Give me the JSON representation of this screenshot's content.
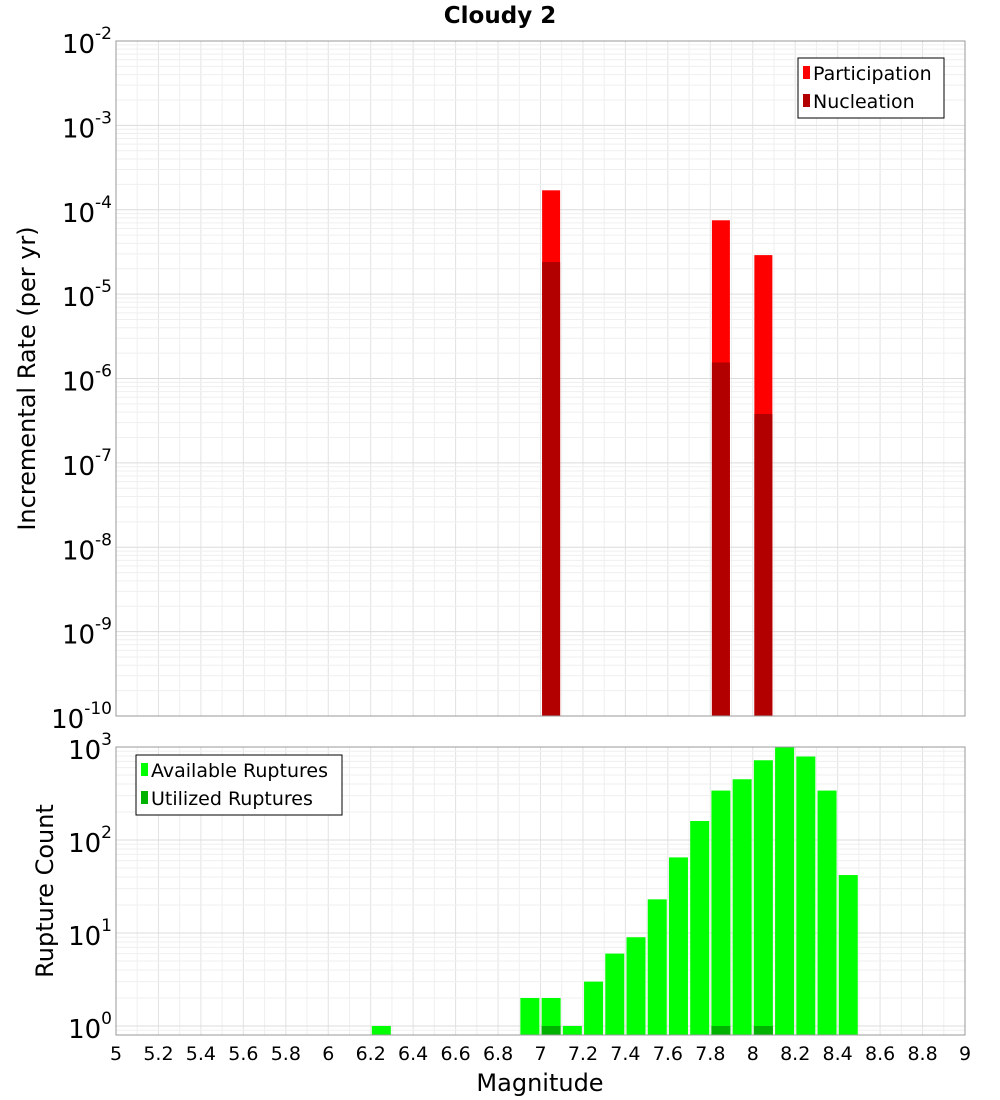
{
  "chart_data": {
    "title": "Cloudy 2",
    "xlabel": "Magnitude",
    "xlim": [
      5,
      9
    ],
    "x_ticks": [
      "5",
      "5.2",
      "5.4",
      "5.6",
      "5.8",
      "6",
      "6.2",
      "6.4",
      "6.6",
      "6.8",
      "7",
      "7.2",
      "7.4",
      "7.6",
      "7.8",
      "8",
      "8.2",
      "8.4",
      "8.6",
      "8.8",
      "9"
    ],
    "panels": [
      {
        "type": "bar",
        "ylabel": "Incremental Rate (per yr)",
        "yscale": "log",
        "ylim": [
          1e-10,
          0.01
        ],
        "grid": true,
        "legend_position": "top-right",
        "y_ticks": [
          {
            "base": "10",
            "exp": "-2"
          },
          {
            "base": "10",
            "exp": "-3"
          },
          {
            "base": "10",
            "exp": "-4"
          },
          {
            "base": "10",
            "exp": "-5"
          },
          {
            "base": "10",
            "exp": "-6"
          },
          {
            "base": "10",
            "exp": "-7"
          },
          {
            "base": "10",
            "exp": "-8"
          },
          {
            "base": "10",
            "exp": "-9"
          },
          {
            "base": "10",
            "exp": "-10"
          }
        ],
        "series": [
          {
            "name": "Participation",
            "color": "#ff0000",
            "x": [
              7.05,
              7.85,
              8.05
            ],
            "values": [
              0.00017,
              7.5e-05,
              2.9e-05
            ]
          },
          {
            "name": "Nucleation",
            "color": "#b20000",
            "x": [
              7.05,
              7.85,
              8.05
            ],
            "values": [
              2.4e-05,
              1.55e-06,
              3.8e-07
            ]
          }
        ]
      },
      {
        "type": "bar",
        "ylabel": "Rupture Count",
        "yscale": "log",
        "ylim": [
          0.8,
          1000
        ],
        "grid": true,
        "legend_position": "top-left",
        "y_ticks": [
          {
            "base": "10",
            "exp": "3"
          },
          {
            "base": "10",
            "exp": "2"
          },
          {
            "base": "10",
            "exp": "1"
          },
          {
            "base": "10",
            "exp": "0"
          }
        ],
        "series": [
          {
            "name": "Available Ruptures",
            "color": "#00ff00",
            "x": [
              6.25,
              6.95,
              7.05,
              7.15,
              7.25,
              7.35,
              7.45,
              7.55,
              7.65,
              7.75,
              7.85,
              7.95,
              8.05,
              8.15,
              8.25,
              8.35,
              8.45
            ],
            "values": [
              1,
              2,
              2,
              1,
              3,
              6,
              9,
              23,
              65,
              160,
              340,
              450,
              720,
              1000,
              790,
              340,
              42
            ]
          },
          {
            "name": "Utilized Ruptures",
            "color": "#00b200",
            "x": [
              7.05,
              7.85,
              8.05
            ],
            "values": [
              1,
              1,
              1
            ]
          }
        ]
      }
    ]
  }
}
